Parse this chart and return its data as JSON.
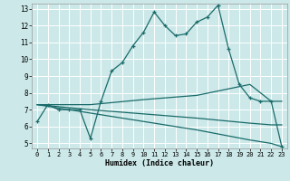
{
  "xlabel": "Humidex (Indice chaleur)",
  "bg_color": "#cce8e8",
  "line_color": "#1a6b6b",
  "grid_color": "#ffffff",
  "xlim": [
    -0.5,
    23.5
  ],
  "ylim": [
    4.7,
    13.3
  ],
  "xticks": [
    0,
    1,
    2,
    3,
    4,
    5,
    6,
    7,
    8,
    9,
    10,
    11,
    12,
    13,
    14,
    15,
    16,
    17,
    18,
    19,
    20,
    21,
    22,
    23
  ],
  "yticks": [
    5,
    6,
    7,
    8,
    9,
    10,
    11,
    12,
    13
  ],
  "line1_x": [
    0,
    1,
    2,
    3,
    4,
    5,
    6,
    7,
    8,
    9,
    10,
    11,
    12,
    13,
    14,
    15,
    16,
    17,
    18,
    19,
    20,
    21,
    22,
    23
  ],
  "line1_y": [
    6.3,
    7.3,
    7.0,
    7.0,
    7.0,
    5.3,
    7.5,
    9.3,
    9.8,
    10.8,
    11.6,
    12.8,
    12.0,
    11.4,
    11.5,
    12.2,
    12.5,
    13.2,
    10.6,
    8.5,
    7.7,
    7.5,
    7.5,
    4.8
  ],
  "line2_x": [
    0,
    5,
    10,
    15,
    20,
    22,
    23
  ],
  "line2_y": [
    7.3,
    7.3,
    7.6,
    7.85,
    8.5,
    7.5,
    7.5
  ],
  "line3_x": [
    0,
    5,
    10,
    15,
    20,
    22,
    23
  ],
  "line3_y": [
    7.3,
    7.0,
    6.75,
    6.5,
    6.2,
    6.1,
    6.1
  ],
  "line4_x": [
    0,
    5,
    10,
    15,
    20,
    22,
    23
  ],
  "line4_y": [
    7.3,
    6.8,
    6.3,
    5.8,
    5.2,
    5.0,
    4.8
  ]
}
